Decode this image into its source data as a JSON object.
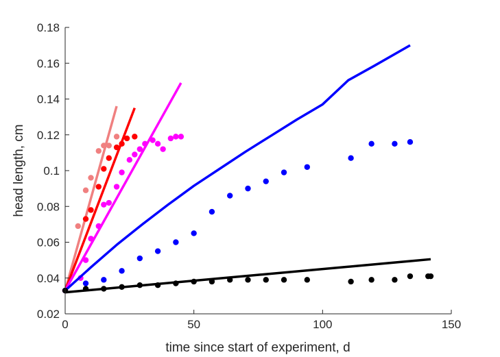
{
  "chart_data": {
    "type": "scatter",
    "title": "",
    "xlabel": "time since start of experiment, d",
    "ylabel": "head length, cm",
    "xlim": [
      0,
      150
    ],
    "ylim": [
      0.02,
      0.18
    ],
    "xticks": [
      "0",
      "50",
      "100",
      "150"
    ],
    "yticks": [
      "0.02",
      "0.04",
      "0.06",
      "0.08",
      "0.1",
      "0.12",
      "0.14",
      "0.16",
      "0.18"
    ],
    "grid": false,
    "legend": "none",
    "series": [
      {
        "color": "#f08080",
        "points": [
          [
            0,
            0.033
          ],
          [
            5,
            0.069
          ],
          [
            8,
            0.089
          ],
          [
            10,
            0.096
          ],
          [
            13,
            0.111
          ],
          [
            15,
            0.114
          ],
          [
            17,
            0.114
          ],
          [
            20,
            0.119
          ]
        ],
        "line": [
          [
            0,
            0.033
          ],
          [
            20,
            0.136
          ]
        ]
      },
      {
        "color": "#ff0000",
        "points": [
          [
            0,
            0.033
          ],
          [
            8,
            0.073
          ],
          [
            10,
            0.078
          ],
          [
            13,
            0.091
          ],
          [
            15,
            0.101
          ],
          [
            17,
            0.107
          ],
          [
            20,
            0.113
          ],
          [
            22,
            0.115
          ],
          [
            24,
            0.118
          ],
          [
            27,
            0.119
          ]
        ],
        "line": [
          [
            0,
            0.033
          ],
          [
            27,
            0.135
          ]
        ]
      },
      {
        "color": "#ff00ff",
        "points": [
          [
            0,
            0.033
          ],
          [
            6,
            0.04
          ],
          [
            8,
            0.05
          ],
          [
            10,
            0.062
          ],
          [
            13,
            0.069
          ],
          [
            15,
            0.081
          ],
          [
            17,
            0.082
          ],
          [
            20,
            0.091
          ],
          [
            22,
            0.099
          ],
          [
            25,
            0.106
          ],
          [
            27,
            0.109
          ],
          [
            29,
            0.112
          ],
          [
            31,
            0.115
          ],
          [
            34,
            0.117
          ],
          [
            36,
            0.115
          ],
          [
            38,
            0.112
          ],
          [
            41,
            0.118
          ],
          [
            43,
            0.119
          ],
          [
            45,
            0.119
          ]
        ],
        "line": [
          [
            0,
            0.033
          ],
          [
            45,
            0.149
          ]
        ]
      },
      {
        "color": "#0000ff",
        "points": [
          [
            0,
            0.033
          ],
          [
            8,
            0.037
          ],
          [
            15,
            0.039
          ],
          [
            22,
            0.044
          ],
          [
            29,
            0.051
          ],
          [
            36,
            0.055
          ],
          [
            43,
            0.06
          ],
          [
            50,
            0.065
          ],
          [
            57,
            0.077
          ],
          [
            64,
            0.086
          ],
          [
            71,
            0.09
          ],
          [
            78,
            0.094
          ],
          [
            85,
            0.099
          ],
          [
            94,
            0.102
          ],
          [
            111,
            0.107
          ],
          [
            119,
            0.115
          ],
          [
            128,
            0.115
          ],
          [
            134,
            0.116
          ]
        ],
        "line": [
          [
            0,
            0.033
          ],
          [
            10,
            0.046
          ],
          [
            20,
            0.0585
          ],
          [
            30,
            0.07
          ],
          [
            40,
            0.081
          ],
          [
            50,
            0.0915
          ],
          [
            60,
            0.101
          ],
          [
            70,
            0.1105
          ],
          [
            80,
            0.1195
          ],
          [
            90,
            0.1285
          ],
          [
            100,
            0.137
          ],
          [
            110,
            0.1505
          ],
          [
            120,
            0.1585
          ],
          [
            134,
            0.17
          ]
        ]
      },
      {
        "color": "#000000",
        "points": [
          [
            0,
            0.033
          ],
          [
            8,
            0.034
          ],
          [
            15,
            0.034
          ],
          [
            22,
            0.035
          ],
          [
            29,
            0.036
          ],
          [
            36,
            0.036
          ],
          [
            43,
            0.037
          ],
          [
            50,
            0.038
          ],
          [
            57,
            0.038
          ],
          [
            64,
            0.039
          ],
          [
            71,
            0.039
          ],
          [
            78,
            0.039
          ],
          [
            85,
            0.039
          ],
          [
            94,
            0.039
          ],
          [
            111,
            0.038
          ],
          [
            119,
            0.039
          ],
          [
            128,
            0.039
          ],
          [
            134,
            0.041
          ],
          [
            141,
            0.041
          ],
          [
            142,
            0.041
          ]
        ],
        "line": [
          [
            0,
            0.032
          ],
          [
            142,
            0.0505
          ]
        ]
      }
    ]
  }
}
